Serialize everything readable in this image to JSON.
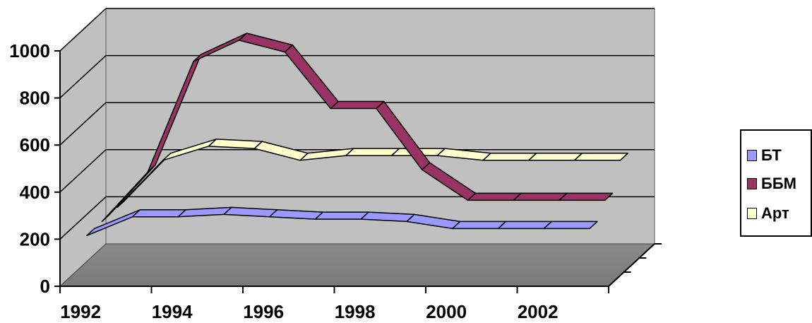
{
  "chart_data": {
    "type": "area",
    "style": "3d-ribbon",
    "categories": [
      "1992",
      "1993",
      "1994",
      "1995",
      "1996",
      "1997",
      "1998",
      "1999",
      "2000",
      "2001",
      "2002",
      "2003"
    ],
    "x_tick_labels": [
      "1992",
      "1994",
      "1996",
      "1998",
      "2000",
      "2002"
    ],
    "y_tick_labels": [
      "0",
      "200",
      "400",
      "600",
      "800",
      "1000"
    ],
    "ylim": [
      0,
      1000
    ],
    "grid": true,
    "legend_position": "right",
    "series": [
      {
        "name": "БТ",
        "color": "#9999ff",
        "values": [
          200,
          280,
          280,
          290,
          280,
          270,
          270,
          260,
          230,
          230,
          230,
          230
        ]
      },
      {
        "name": "ББМ",
        "color": "#993366",
        "values": [
          200,
          410,
          880,
          970,
          920,
          680,
          680,
          420,
          290,
          290,
          290,
          290
        ]
      },
      {
        "name": "Арт",
        "color": "#ffffcc",
        "values": [
          200,
          400,
          460,
          450,
          400,
          420,
          420,
          420,
          400,
          400,
          400,
          400
        ]
      }
    ]
  }
}
